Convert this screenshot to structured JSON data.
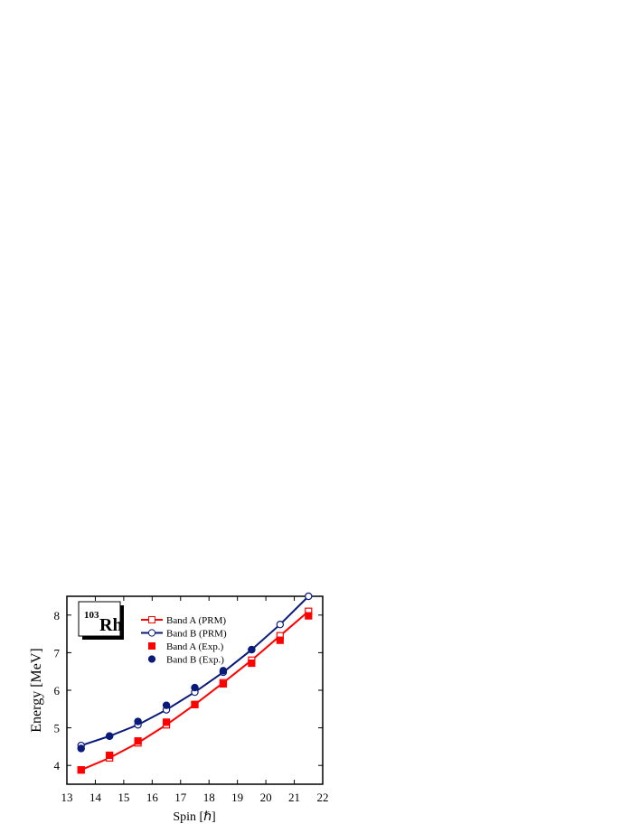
{
  "chart_data": {
    "type": "line",
    "x_label": "Spin [ℏ]",
    "y_label": "Energy [MeV]",
    "annotation": {
      "superscript": "103",
      "text": "Rh"
    },
    "x": [
      13.5,
      14.5,
      15.5,
      16.5,
      17.5,
      18.5,
      19.5,
      20.5,
      21.5
    ],
    "series": [
      {
        "name": "Band A (PRM)",
        "color": "#ff0000",
        "marker": "square",
        "filled": false,
        "line": true,
        "values": [
          3.88,
          4.2,
          4.6,
          5.08,
          5.62,
          6.2,
          6.8,
          7.45,
          8.1
        ]
      },
      {
        "name": "Band B (PRM)",
        "color": "#0a1a7a",
        "marker": "circle",
        "filled": false,
        "line": true,
        "values": [
          4.53,
          4.78,
          5.08,
          5.48,
          5.95,
          6.48,
          7.08,
          7.75,
          8.5
        ]
      },
      {
        "name": "Band A (Exp.)",
        "color": "#ff0000",
        "marker": "square",
        "filled": true,
        "line": false,
        "values": [
          3.88,
          4.27,
          4.65,
          5.15,
          5.62,
          6.17,
          6.72,
          7.33,
          7.98
        ]
      },
      {
        "name": "Band B (Exp.)",
        "color": "#0a1a7a",
        "marker": "circle",
        "filled": true,
        "line": false,
        "values": [
          4.45,
          4.78,
          5.17,
          5.6,
          6.07,
          6.52,
          7.08,
          null,
          null
        ]
      }
    ],
    "xlim": [
      13,
      22
    ],
    "xticks": [
      13,
      14,
      15,
      16,
      17,
      18,
      19,
      20,
      21,
      22
    ],
    "ylim": [
      3.5,
      8.5
    ],
    "yticks": [
      4,
      5,
      6,
      7,
      8
    ]
  }
}
